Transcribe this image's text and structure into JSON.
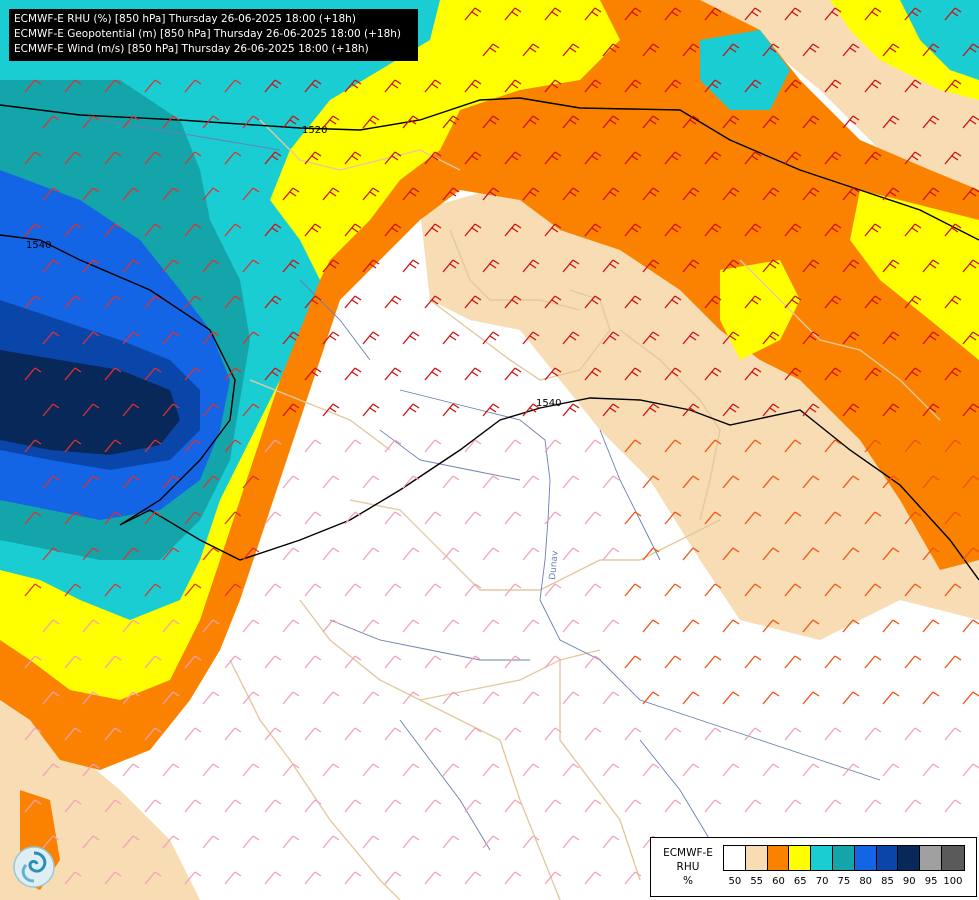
{
  "title_lines": [
    "ECMWF-E RHU (%) [850 hPa] Thursday 26-06-2025 18:00 (+18h)",
    "ECMWF-E Geopotential (m) [850 hPa] Thursday 26-06-2025 18:00 (+18h)",
    "ECMWF-E Wind (m/s) [850 hPa] Thursday 26-06-2025 18:00 (+18h)"
  ],
  "contour_labels": [
    "1520",
    "1540",
    "1540"
  ],
  "river_label": "Dunav",
  "legend": {
    "model": "ECMWF-E",
    "variable": "RHU",
    "unit": "%",
    "ticks": [
      "50",
      "55",
      "60",
      "65",
      "70",
      "75",
      "80",
      "85",
      "90",
      "95",
      "100"
    ],
    "colors": [
      "#ffffff",
      "#f7dcb4",
      "#fa8200",
      "#ffff00",
      "#19cdd2",
      "#14a5aa",
      "#1464e6",
      "#0a46aa",
      "#08285a",
      "#a0a0a0",
      "#5a5a5a"
    ]
  },
  "logo": "cyclone-logo-icon"
}
